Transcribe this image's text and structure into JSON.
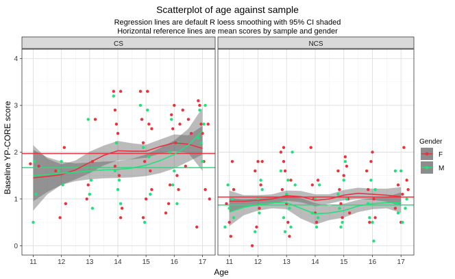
{
  "chart_data": {
    "type": "scatter",
    "title": "Scatterplot of age against sample",
    "subtitle_lines": [
      "Regression lines are default R loess smoothing with 95% CI shaded",
      "Horizontal reference lines are mean scores by sample and gender"
    ],
    "xlabel": "Age",
    "ylabel": "Baseline YP-CORE score",
    "xlim": [
      10.6,
      17.45
    ],
    "ylim": [
      -0.2,
      4.2
    ],
    "x_ticks": [
      11,
      12,
      13,
      14,
      15,
      16,
      17
    ],
    "y_ticks": [
      0,
      1,
      2,
      3,
      4
    ],
    "legend": {
      "title": "Gender",
      "position": "right",
      "entries": [
        {
          "key": "F",
          "label": "F",
          "color": "#e8323e"
        },
        {
          "key": "M",
          "label": "M",
          "color": "#22e07a"
        }
      ]
    },
    "panels": [
      {
        "name": "CS",
        "means": {
          "F": 1.97,
          "M": 1.67
        },
        "loess": {
          "F": {
            "x": [
              11,
              11.5,
              12,
              12.5,
              13,
              13.5,
              14,
              14.5,
              15,
              15.5,
              16,
              16.5,
              17
            ],
            "y": [
              1.45,
              1.48,
              1.52,
              1.62,
              1.78,
              1.93,
              2.03,
              2.02,
              2.02,
              2.12,
              2.2,
              2.17,
              2.08
            ],
            "lo": [
              0.75,
              1.1,
              1.3,
              1.42,
              1.55,
              1.72,
              1.82,
              1.85,
              1.88,
              1.97,
              2.02,
              1.98,
              1.6
            ],
            "hi": [
              2.15,
              1.86,
              1.74,
              1.82,
              2.01,
              2.14,
              2.24,
              2.19,
              2.16,
              2.27,
              2.38,
              2.36,
              2.56
            ]
          },
          "M": {
            "x": [
              11,
              11.5,
              12,
              12.5,
              13,
              13.5,
              14,
              14.5,
              15,
              15.5,
              16,
              16.5,
              17
            ],
            "y": [
              1.5,
              1.52,
              1.55,
              1.57,
              1.6,
              1.62,
              1.63,
              1.66,
              1.72,
              1.82,
              1.95,
              2.15,
              2.45
            ],
            "lo": [
              0.95,
              1.15,
              1.3,
              1.38,
              1.42,
              1.44,
              1.45,
              1.46,
              1.49,
              1.55,
              1.65,
              1.8,
              1.95
            ],
            "hi": [
              2.05,
              1.89,
              1.8,
              1.76,
              1.78,
              1.8,
              1.81,
              1.86,
              1.95,
              2.09,
              2.25,
              2.5,
              2.95
            ]
          }
        },
        "points": {
          "F": [
            [
              10.9,
              1.75
            ],
            [
              11.2,
              1.7
            ],
            [
              11.8,
              1.6
            ],
            [
              11.95,
              0.6
            ],
            [
              12.1,
              2.1
            ],
            [
              12.15,
              0.9
            ],
            [
              12.9,
              1.0
            ],
            [
              12.95,
              1.3
            ],
            [
              13.1,
              1.8
            ],
            [
              13.2,
              2.7
            ],
            [
              13.85,
              3.3
            ],
            [
              13.9,
              2.9
            ],
            [
              13.95,
              2.6
            ],
            [
              14.0,
              2.4
            ],
            [
              13.9,
              1.7
            ],
            [
              14.05,
              1.5
            ],
            [
              14.1,
              0.6
            ],
            [
              14.15,
              0.8
            ],
            [
              13.95,
              2.2
            ],
            [
              14.1,
              3.3
            ],
            [
              14.8,
              3.3
            ],
            [
              14.85,
              2.7
            ],
            [
              14.9,
              2.2
            ],
            [
              14.95,
              1.8
            ],
            [
              15.05,
              3.3
            ],
            [
              15.1,
              2.6
            ],
            [
              15.15,
              1.6
            ],
            [
              15.2,
              1.2
            ],
            [
              15.0,
              1.0
            ],
            [
              14.9,
              0.6
            ],
            [
              15.2,
              2.5
            ],
            [
              15.7,
              0.7
            ],
            [
              15.8,
              0.9
            ],
            [
              15.85,
              1.3
            ],
            [
              15.9,
              2.8
            ],
            [
              15.95,
              2.5
            ],
            [
              16.0,
              3.0
            ],
            [
              16.05,
              2.2
            ],
            [
              16.1,
              1.5
            ],
            [
              16.2,
              2.6
            ],
            [
              16.3,
              2.9
            ],
            [
              16.15,
              1.2
            ],
            [
              16.8,
              0.4
            ],
            [
              16.85,
              3.1
            ],
            [
              16.9,
              3.0
            ],
            [
              16.95,
              2.6
            ],
            [
              17.0,
              2.4
            ],
            [
              17.05,
              1.8
            ],
            [
              17.1,
              1.2
            ],
            [
              17.2,
              2.6
            ],
            [
              17.25,
              1.0
            ],
            [
              16.4,
              1.7
            ],
            [
              16.5,
              2.7
            ],
            [
              16.6,
              2.4
            ]
          ],
          "M": [
            [
              11.0,
              0.5
            ],
            [
              11.1,
              1.1
            ],
            [
              11.05,
              1.8
            ],
            [
              11.9,
              1.6
            ],
            [
              12.05,
              1.3
            ],
            [
              12.0,
              1.8
            ],
            [
              12.95,
              2.7
            ],
            [
              13.05,
              1.4
            ],
            [
              13.1,
              0.8
            ],
            [
              13.0,
              1.1
            ],
            [
              13.85,
              3.2
            ],
            [
              13.95,
              2.2
            ],
            [
              14.0,
              1.2
            ],
            [
              14.05,
              1.4
            ],
            [
              14.1,
              0.9
            ],
            [
              13.9,
              1.6
            ],
            [
              14.8,
              3.0
            ],
            [
              14.9,
              2.1
            ],
            [
              14.95,
              0.5
            ],
            [
              15.05,
              2.9
            ],
            [
              15.1,
              1.9
            ],
            [
              15.15,
              1.1
            ],
            [
              15.85,
              2.0
            ],
            [
              15.9,
              2.7
            ],
            [
              15.95,
              1.3
            ],
            [
              16.0,
              1.6
            ],
            [
              16.1,
              0.9
            ],
            [
              16.15,
              2.2
            ],
            [
              16.85,
              2.3
            ],
            [
              16.9,
              2.9
            ],
            [
              16.95,
              2.2
            ],
            [
              17.0,
              1.8
            ],
            [
              17.05,
              2.6
            ],
            [
              17.1,
              3.0
            ]
          ]
        }
      },
      {
        "name": "NCS",
        "means": {
          "F": 1.04,
          "M": 0.87
        },
        "loess": {
          "F": {
            "x": [
              11,
              11.5,
              12,
              12.5,
              13,
              13.5,
              14,
              14.5,
              15,
              15.5,
              16,
              16.5,
              17
            ],
            "y": [
              0.95,
              0.95,
              0.97,
              1.0,
              1.07,
              1.05,
              0.97,
              1.0,
              1.08,
              1.12,
              1.1,
              1.08,
              1.05
            ],
            "lo": [
              0.72,
              0.82,
              0.86,
              0.9,
              0.96,
              0.93,
              0.84,
              0.9,
              0.97,
              1.0,
              0.98,
              0.94,
              0.85
            ],
            "hi": [
              1.18,
              1.08,
              1.08,
              1.1,
              1.18,
              1.17,
              1.1,
              1.1,
              1.19,
              1.24,
              1.22,
              1.22,
              1.25
            ]
          },
          "M": {
            "x": [
              11,
              11.5,
              12,
              12.5,
              13,
              13.5,
              14,
              14.5,
              15,
              15.5,
              16,
              16.5,
              17
            ],
            "y": [
              0.72,
              0.82,
              0.88,
              0.92,
              0.92,
              0.8,
              0.68,
              0.7,
              0.75,
              0.85,
              0.9,
              0.92,
              0.92
            ],
            "lo": [
              0.42,
              0.65,
              0.75,
              0.8,
              0.78,
              0.58,
              0.45,
              0.55,
              0.6,
              0.72,
              0.78,
              0.8,
              0.7
            ],
            "hi": [
              1.02,
              0.99,
              1.01,
              1.04,
              1.06,
              1.02,
              0.91,
              0.85,
              0.9,
              0.98,
              1.02,
              1.04,
              1.14
            ]
          }
        },
        "points": {
          "F": [
            [
              10.9,
              0.9
            ],
            [
              11.0,
              0.5
            ],
            [
              11.05,
              0.2
            ],
            [
              11.1,
              1.8
            ],
            [
              11.15,
              1.2
            ],
            [
              11.8,
              0.0
            ],
            [
              11.9,
              1.6
            ],
            [
              12.0,
              1.8
            ],
            [
              12.05,
              0.8
            ],
            [
              12.1,
              1.3
            ],
            [
              12.15,
              1.8
            ],
            [
              11.95,
              0.4
            ],
            [
              12.8,
              2.0
            ],
            [
              12.85,
              1.2
            ],
            [
              12.9,
              1.8
            ],
            [
              12.95,
              1.6
            ],
            [
              13.0,
              0.9
            ],
            [
              13.05,
              0.5
            ],
            [
              13.1,
              0.2
            ],
            [
              13.15,
              1.4
            ],
            [
              12.9,
              2.1
            ],
            [
              13.85,
              2.1
            ],
            [
              13.9,
              1.3
            ],
            [
              13.95,
              1.0
            ],
            [
              14.0,
              0.7
            ],
            [
              14.05,
              0.5
            ],
            [
              14.1,
              1.4
            ],
            [
              14.8,
              1.6
            ],
            [
              14.85,
              1.2
            ],
            [
              14.9,
              0.9
            ],
            [
              14.95,
              0.6
            ],
            [
              15.0,
              1.5
            ],
            [
              15.05,
              1.9
            ],
            [
              15.1,
              1.7
            ],
            [
              15.15,
              1.0
            ],
            [
              15.2,
              0.7
            ],
            [
              15.8,
              1.6
            ],
            [
              15.85,
              1.2
            ],
            [
              15.9,
              0.5
            ],
            [
              15.95,
              1.8
            ],
            [
              16.0,
              2.0
            ],
            [
              16.05,
              1.0
            ],
            [
              16.1,
              0.6
            ],
            [
              16.8,
              0.8
            ],
            [
              16.9,
              1.3
            ],
            [
              17.0,
              0.5
            ],
            [
              17.05,
              1.1
            ],
            [
              17.1,
              2.1
            ],
            [
              17.2,
              1.4
            ],
            [
              17.25,
              1.2
            ]
          ],
          "M": [
            [
              10.85,
              0.4
            ],
            [
              10.95,
              1.3
            ],
            [
              11.0,
              0.8
            ],
            [
              11.1,
              1.0
            ],
            [
              11.15,
              0.6
            ],
            [
              11.9,
              0.3
            ],
            [
              12.0,
              1.0
            ],
            [
              12.05,
              0.7
            ],
            [
              12.1,
              1.4
            ],
            [
              12.15,
              1.2
            ],
            [
              12.8,
              1.6
            ],
            [
              12.9,
              0.6
            ],
            [
              12.95,
              0.3
            ],
            [
              13.0,
              1.1
            ],
            [
              13.05,
              1.4
            ],
            [
              13.1,
              0.8
            ],
            [
              13.15,
              0.4
            ],
            [
              13.2,
              2.0
            ],
            [
              13.3,
              1.3
            ],
            [
              13.9,
              0.7
            ],
            [
              14.0,
              1.0
            ],
            [
              14.05,
              0.4
            ],
            [
              14.1,
              0.6
            ],
            [
              14.15,
              1.3
            ],
            [
              14.8,
              1.1
            ],
            [
              14.85,
              0.8
            ],
            [
              14.9,
              0.4
            ],
            [
              14.95,
              0.5
            ],
            [
              15.0,
              1.4
            ],
            [
              15.05,
              1.8
            ],
            [
              15.1,
              1.0
            ],
            [
              15.85,
              0.9
            ],
            [
              15.9,
              0.6
            ],
            [
              15.95,
              1.4
            ],
            [
              16.0,
              0.5
            ],
            [
              16.05,
              0.1
            ],
            [
              16.1,
              1.2
            ],
            [
              16.8,
              1.6
            ],
            [
              16.85,
              0.9
            ],
            [
              16.9,
              0.7
            ],
            [
              17.0,
              1.6
            ],
            [
              17.05,
              0.5
            ],
            [
              17.15,
              0.8
            ],
            [
              17.2,
              1.0
            ]
          ]
        }
      }
    ]
  }
}
